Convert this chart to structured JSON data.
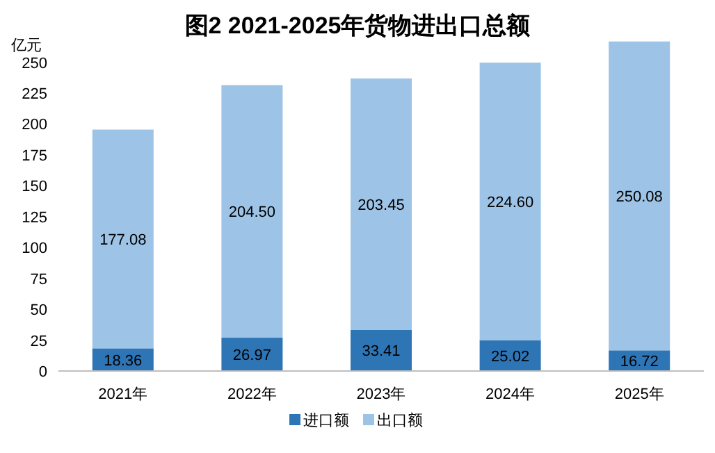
{
  "chart_data": {
    "type": "bar",
    "title": "图2  2021-2025年货物进出口总额",
    "ylabel": "亿元",
    "categories": [
      "2021年",
      "2022年",
      "2023年",
      "2024年",
      "2025年"
    ],
    "stacked": true,
    "legend": "bottom",
    "grid": false,
    "ylim": [
      0,
      270
    ],
    "yticks": [
      0,
      25,
      50,
      75,
      100,
      125,
      150,
      175,
      200,
      225,
      250
    ],
    "series": [
      {
        "name": "进口额",
        "color": "#2e75b6",
        "values": [
          18.36,
          26.97,
          33.41,
          25.02,
          16.72
        ],
        "value_labels": [
          "18.36",
          "26.97",
          "33.41",
          "25.02",
          "16.72"
        ]
      },
      {
        "name": "出口额",
        "color": "#9dc3e6",
        "values": [
          177.08,
          204.5,
          203.45,
          224.6,
          250.08
        ],
        "value_labels": [
          "177.08",
          "204.50",
          "203.45",
          "224.60",
          "250.08"
        ]
      }
    ]
  }
}
